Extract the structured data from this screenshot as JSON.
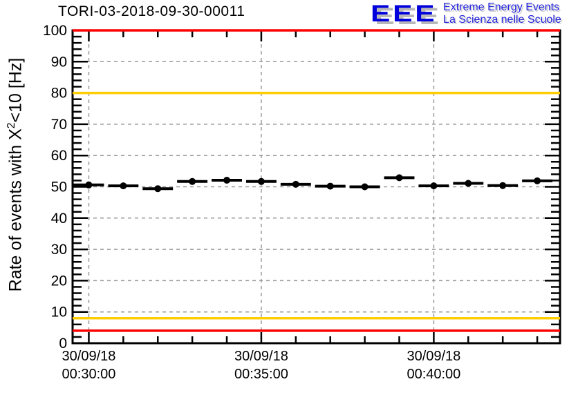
{
  "title": "TORI-03-2018-09-30-00011",
  "logo": {
    "acronym": "EEE",
    "line1": "Extreme Energy Events",
    "line2": "La Scienza nelle Scuole",
    "acronym_color": "#0000dd",
    "text_color": "#2323dd"
  },
  "chart_data": {
    "type": "scatter",
    "title": "TORI-03-2018-09-30-00011",
    "ylabel": "Rate of events with X^2<10 [Hz]",
    "ylabel_parts": {
      "prefix": "Rate of events with X",
      "sup": "2",
      "suffix": "<10 [Hz]"
    },
    "xlabel": "",
    "ylim": [
      0,
      100
    ],
    "y_major_step": 10,
    "y_minor_step": 2,
    "x_range_minutes": [
      -0.47,
      13.66
    ],
    "x_minor_step_minutes": 1,
    "x_major_ticks": [
      {
        "minute": 0,
        "date": "30/09/18",
        "time": "00:30:00"
      },
      {
        "minute": 5,
        "date": "30/09/18",
        "time": "00:35:00"
      },
      {
        "minute": 10,
        "date": "30/09/18",
        "time": "00:40:00"
      }
    ],
    "grid": true,
    "grid_color": "#999999",
    "axis_color": "#000000",
    "marker_color": "#000000",
    "bin_half_width_minutes": 0.44,
    "points": [
      {
        "minute": 0,
        "rate_hz": 50.6
      },
      {
        "minute": 1,
        "rate_hz": 50.3
      },
      {
        "minute": 2,
        "rate_hz": 49.4
      },
      {
        "minute": 3,
        "rate_hz": 51.7
      },
      {
        "minute": 4,
        "rate_hz": 52.1
      },
      {
        "minute": 5,
        "rate_hz": 51.7
      },
      {
        "minute": 6,
        "rate_hz": 50.8
      },
      {
        "minute": 7,
        "rate_hz": 50.2
      },
      {
        "minute": 8,
        "rate_hz": 50.0
      },
      {
        "minute": 9,
        "rate_hz": 52.9
      },
      {
        "minute": 10,
        "rate_hz": 50.3
      },
      {
        "minute": 11,
        "rate_hz": 51.1
      },
      {
        "minute": 12,
        "rate_hz": 50.4
      },
      {
        "minute": 13,
        "rate_hz": 51.9
      }
    ],
    "reference_lines": [
      {
        "value": 100,
        "color": "#ff0000",
        "label": "alarm-max"
      },
      {
        "value": 80,
        "color": "#ffcc00",
        "label": "warning-max"
      },
      {
        "value": 8,
        "color": "#ffcc00",
        "label": "warning-min"
      },
      {
        "value": 4,
        "color": "#ff0000",
        "label": "alarm-min"
      }
    ]
  }
}
